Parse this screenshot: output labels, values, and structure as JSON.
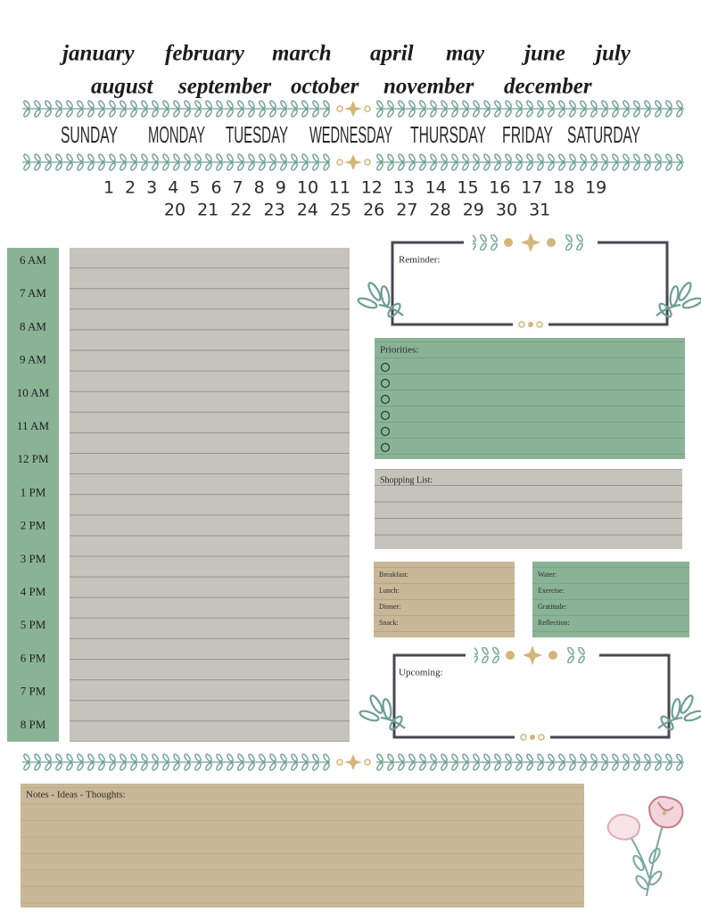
{
  "months": [
    "january",
    "february",
    "march",
    "april",
    "may",
    "june",
    "july",
    "august",
    "september",
    "october",
    "november",
    "december"
  ],
  "weekdays": [
    "SUNDAY",
    "MONDAY",
    "TUESDAY",
    "WEDNESDAY",
    "THURSDAY",
    "FRIDAY",
    "SATURDAY"
  ],
  "dates": [
    1,
    2,
    3,
    4,
    5,
    6,
    7,
    8,
    9,
    10,
    11,
    12,
    13,
    14,
    15,
    16,
    17,
    18,
    19,
    20,
    21,
    22,
    23,
    24,
    25,
    26,
    27,
    28,
    29,
    30,
    31
  ],
  "schedule": {
    "times": [
      "6 AM",
      "7 AM",
      "8 AM",
      "9 AM",
      "10 AM",
      "11 AM",
      "12 PM",
      "1 PM",
      "2 PM",
      "3 PM",
      "4 PM",
      "5 PM",
      "6 PM",
      "7 PM",
      "8 PM"
    ]
  },
  "reminder": {
    "label": "Reminder:"
  },
  "priorities": {
    "label": "Priorities:"
  },
  "shopping_list": {
    "label": "Shopping List:"
  },
  "meals": [
    "Breakfast:",
    "Lunch:",
    "Dinner:",
    "Snack:"
  ],
  "wellness": [
    "Water:",
    "Exercise:",
    "Gratitude:",
    "Reflection:"
  ],
  "upcoming": {
    "label": "Upcoming:"
  },
  "notes": {
    "label": "Notes - Ideas - Thoughts:"
  }
}
